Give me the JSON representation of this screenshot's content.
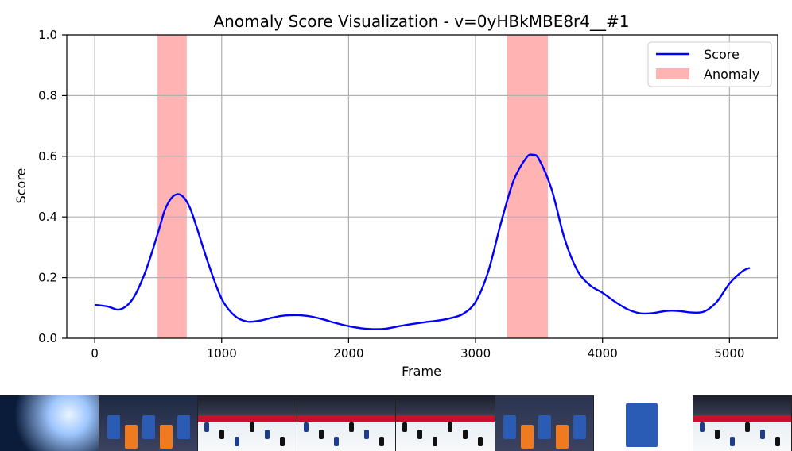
{
  "chart_data": {
    "type": "line",
    "title": "Anomaly Score Visualization - v=0yHBkMBE8r4__#1",
    "xlabel": "Frame",
    "ylabel": "Score",
    "xlim": [
      -220,
      5380
    ],
    "ylim": [
      0.0,
      1.0
    ],
    "xticks": [
      0,
      1000,
      2000,
      3000,
      4000,
      5000
    ],
    "xtick_labels": [
      "0",
      "1000",
      "2000",
      "3000",
      "4000",
      "5000"
    ],
    "yticks": [
      0.0,
      0.2,
      0.4,
      0.6,
      0.8,
      1.0
    ],
    "ytick_labels": [
      "0.0",
      "0.2",
      "0.4",
      "0.6",
      "0.8",
      "1.0"
    ],
    "grid": true,
    "legend": {
      "placement": "top-right",
      "entries": [
        {
          "label": "Score",
          "kind": "line",
          "color": "#0000ff"
        },
        {
          "label": "Anomaly",
          "kind": "patch",
          "color": "#ffb3b3"
        }
      ]
    },
    "anomaly_regions": [
      [
        495,
        725
      ],
      [
        3250,
        3570
      ]
    ],
    "series": [
      {
        "name": "Score",
        "color": "#0000ff",
        "x": [
          0,
          100,
          200,
          300,
          400,
          500,
          550,
          600,
          650,
          700,
          750,
          800,
          900,
          1000,
          1100,
          1200,
          1300,
          1400,
          1500,
          1600,
          1700,
          1800,
          1900,
          2000,
          2100,
          2200,
          2300,
          2400,
          2500,
          2600,
          2700,
          2800,
          2900,
          3000,
          3100,
          3200,
          3300,
          3400,
          3450,
          3500,
          3600,
          3700,
          3800,
          3900,
          4000,
          4100,
          4200,
          4300,
          4400,
          4500,
          4600,
          4700,
          4800,
          4900,
          5000,
          5100,
          5160
        ],
        "values": [
          0.11,
          0.105,
          0.095,
          0.13,
          0.22,
          0.35,
          0.42,
          0.46,
          0.475,
          0.465,
          0.43,
          0.37,
          0.24,
          0.13,
          0.075,
          0.055,
          0.058,
          0.068,
          0.075,
          0.076,
          0.072,
          0.062,
          0.05,
          0.04,
          0.033,
          0.03,
          0.032,
          0.04,
          0.047,
          0.053,
          0.058,
          0.066,
          0.08,
          0.12,
          0.22,
          0.38,
          0.52,
          0.595,
          0.605,
          0.59,
          0.49,
          0.33,
          0.225,
          0.175,
          0.15,
          0.12,
          0.095,
          0.082,
          0.083,
          0.09,
          0.09,
          0.085,
          0.088,
          0.12,
          0.18,
          0.22,
          0.232
        ]
      }
    ]
  },
  "thumbnails": [
    {
      "name": "frame-1",
      "palette": [
        "#0b1c3a",
        "#9fc7ff",
        "#eaf4ff"
      ]
    },
    {
      "name": "frame-2",
      "palette": [
        "#1e2a44",
        "#2a5bb5",
        "#f07a1f"
      ]
    },
    {
      "name": "frame-3",
      "palette": [
        "#2a2f45",
        "#eef2f6",
        "#1d3c8a"
      ]
    },
    {
      "name": "frame-4",
      "palette": [
        "#2a2f45",
        "#eef2f6",
        "#1d3c8a"
      ]
    },
    {
      "name": "frame-5",
      "palette": [
        "#f2f4f7",
        "#c8102e",
        "#111111"
      ]
    },
    {
      "name": "frame-6",
      "palette": [
        "#2b3550",
        "#2a5bb5",
        "#f07a1f"
      ]
    },
    {
      "name": "frame-7",
      "palette": [
        "#ffffff",
        "#2a5bb5",
        "#f07a1f"
      ]
    },
    {
      "name": "frame-8",
      "palette": [
        "#2a2f45",
        "#eef2f6",
        "#1d3c8a"
      ]
    }
  ]
}
